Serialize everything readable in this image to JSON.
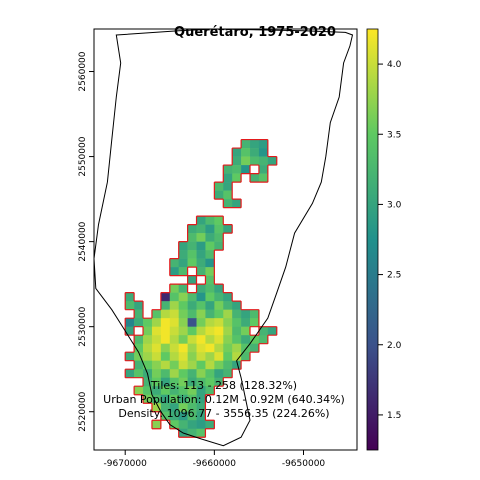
{
  "title": "Querétaro, 1975-2020",
  "x_ticks": [
    "-9670000",
    "-9660000",
    "-9650000"
  ],
  "y_ticks": [
    "2520000",
    "2530000",
    "2540000",
    "2550000",
    "2560000"
  ],
  "annotations": [
    "Tiles: 113 - 258 (128.32%)",
    "Urban Population: 0.12M - 0.92M (640.34%)",
    "Density: 1096.77 - 3556.35 (224.26%)"
  ],
  "legend": {
    "ticks": [
      "1.5",
      "2.0",
      "2.5",
      "3.0",
      "3.5",
      "4.0"
    ],
    "tick_values": [
      1.5,
      2.0,
      2.5,
      3.0,
      3.5,
      4.0
    ],
    "min": 1.25,
    "max": 4.25
  },
  "colors": {
    "boundary": "#000000",
    "tile_outline": "#e31a1c",
    "viridis": [
      "#440154",
      "#3b528b",
      "#21918c",
      "#5ec962",
      "#fde725"
    ]
  },
  "chart_data": {
    "type": "heatmap",
    "title": "Querétaro, 1975-2020",
    "x_range": [
      -9673500,
      -9644000
    ],
    "y_range": [
      2515500,
      2565000
    ],
    "cell_size_m": 1000,
    "color_range": [
      1.25,
      4.25
    ],
    "region_outline": [
      [
        -9671000,
        2564300
      ],
      [
        -9664000,
        2564800
      ],
      [
        -9660000,
        2565000
      ],
      [
        -9650000,
        2564800
      ],
      [
        -9645300,
        2564600
      ],
      [
        -9644500,
        2564300
      ],
      [
        -9644800,
        2563000
      ],
      [
        -9645500,
        2561000
      ],
      [
        -9646000,
        2557000
      ],
      [
        -9647000,
        2554000
      ],
      [
        -9647500,
        2550000
      ],
      [
        -9648000,
        2547000
      ],
      [
        -9649000,
        2544500
      ],
      [
        -9651000,
        2541000
      ],
      [
        -9652000,
        2537000
      ],
      [
        -9653000,
        2534000
      ],
      [
        -9654000,
        2531000
      ],
      [
        -9656000,
        2528000
      ],
      [
        -9657500,
        2526000
      ],
      [
        -9657000,
        2524000
      ],
      [
        -9656500,
        2521500
      ],
      [
        -9656000,
        2519000
      ],
      [
        -9657000,
        2517000
      ],
      [
        -9659000,
        2516000
      ],
      [
        -9661500,
        2516800
      ],
      [
        -9663500,
        2517500
      ],
      [
        -9665000,
        2518500
      ],
      [
        -9666000,
        2520000
      ],
      [
        -9667000,
        2522000
      ],
      [
        -9667500,
        2524500
      ],
      [
        -9668500,
        2527000
      ],
      [
        -9670000,
        2529500
      ],
      [
        -9671500,
        2532000
      ],
      [
        -9673300,
        2534500
      ],
      [
        -9673500,
        2538000
      ],
      [
        -9673000,
        2542000
      ],
      [
        -9672000,
        2547000
      ],
      [
        -9671500,
        2552000
      ],
      [
        -9671000,
        2557000
      ],
      [
        -9670500,
        2561000
      ],
      [
        -9671000,
        2564300
      ]
    ],
    "cells": [
      [
        -9657000,
        2551000,
        3.2
      ],
      [
        -9656000,
        2551000,
        3.0
      ],
      [
        -9655000,
        2551000,
        2.9
      ],
      [
        -9658000,
        2550000,
        3.0
      ],
      [
        -9657000,
        2550000,
        3.4
      ],
      [
        -9656000,
        2550000,
        3.1
      ],
      [
        -9655000,
        2550000,
        2.8
      ],
      [
        -9658000,
        2549000,
        3.1
      ],
      [
        -9657000,
        2549000,
        3.6
      ],
      [
        -9656000,
        2549000,
        3.3
      ],
      [
        -9655000,
        2549000,
        3.2
      ],
      [
        -9654000,
        2549000,
        3.0
      ],
      [
        -9659000,
        2548000,
        3.2
      ],
      [
        -9658000,
        2548000,
        3.3
      ],
      [
        -9657000,
        2548000,
        2.8
      ],
      [
        -9655000,
        2548000,
        3.1
      ],
      [
        -9659000,
        2547000,
        3.0
      ],
      [
        -9658000,
        2547000,
        3.5
      ],
      [
        -9656000,
        2547000,
        3.2
      ],
      [
        -9655000,
        2547000,
        3.4
      ],
      [
        -9660000,
        2546000,
        3.3
      ],
      [
        -9659000,
        2546000,
        3.0
      ],
      [
        -9660000,
        2545000,
        3.1
      ],
      [
        -9659000,
        2545000,
        3.4
      ],
      [
        -9659000,
        2544000,
        3.2
      ],
      [
        -9658000,
        2544000,
        3.0
      ],
      [
        -9662000,
        2542000,
        3.0
      ],
      [
        -9661000,
        2542000,
        3.3
      ],
      [
        -9660000,
        2542000,
        3.5
      ],
      [
        -9663000,
        2541000,
        3.1
      ],
      [
        -9662000,
        2541000,
        3.2
      ],
      [
        -9661000,
        2541000,
        2.9
      ],
      [
        -9660000,
        2541000,
        3.4
      ],
      [
        -9659000,
        2541000,
        3.0
      ],
      [
        -9663000,
        2540000,
        3.3
      ],
      [
        -9662000,
        2540000,
        3.6
      ],
      [
        -9661000,
        2540000,
        3.1
      ],
      [
        -9660000,
        2540000,
        3.3
      ],
      [
        -9664000,
        2539000,
        3.0
      ],
      [
        -9663000,
        2539000,
        3.2
      ],
      [
        -9662000,
        2539000,
        2.9
      ],
      [
        -9661000,
        2539000,
        3.5
      ],
      [
        -9660000,
        2539000,
        3.2
      ],
      [
        -9664000,
        2538000,
        3.1
      ],
      [
        -9663000,
        2538000,
        3.4
      ],
      [
        -9662000,
        2538000,
        3.0
      ],
      [
        -9661000,
        2538000,
        3.3
      ],
      [
        -9665000,
        2537000,
        3.2
      ],
      [
        -9664000,
        2537000,
        3.0
      ],
      [
        -9663000,
        2537000,
        3.5
      ],
      [
        -9662000,
        2537000,
        3.1
      ],
      [
        -9661000,
        2537000,
        2.8
      ],
      [
        -9665000,
        2536000,
        2.9
      ],
      [
        -9664000,
        2536000,
        3.3
      ],
      [
        -9662000,
        2536000,
        3.2
      ],
      [
        -9661000,
        2536000,
        3.6
      ],
      [
        -9663000,
        2535000,
        3.0
      ],
      [
        -9661000,
        2535000,
        3.4
      ],
      [
        -9665000,
        2534000,
        3.6
      ],
      [
        -9664000,
        2534000,
        3.2
      ],
      [
        -9662000,
        2534000,
        3.1
      ],
      [
        -9661000,
        2534000,
        3.3
      ],
      [
        -9660000,
        2534000,
        3.0
      ],
      [
        -9670000,
        2533000,
        3.1
      ],
      [
        -9666000,
        2533000,
        1.6
      ],
      [
        -9665000,
        2533000,
        3.4
      ],
      [
        -9664000,
        2533000,
        3.7
      ],
      [
        -9663000,
        2533000,
        3.3
      ],
      [
        -9662000,
        2533000,
        2.8
      ],
      [
        -9661000,
        2533000,
        3.5
      ],
      [
        -9660000,
        2533000,
        3.2
      ],
      [
        -9659000,
        2533000,
        3.0
      ],
      [
        -9670000,
        2532000,
        3.3
      ],
      [
        -9669000,
        2532000,
        3.0
      ],
      [
        -9666000,
        2532000,
        3.2
      ],
      [
        -9665000,
        2532000,
        3.8
      ],
      [
        -9664000,
        2532000,
        3.5
      ],
      [
        -9663000,
        2532000,
        3.1
      ],
      [
        -9662000,
        2532000,
        3.4
      ],
      [
        -9661000,
        2532000,
        3.0
      ],
      [
        -9660000,
        2532000,
        3.6
      ],
      [
        -9659000,
        2532000,
        3.2
      ],
      [
        -9658000,
        2532000,
        3.0
      ],
      [
        -9669000,
        2531000,
        3.2
      ],
      [
        -9667000,
        2531000,
        3.4
      ],
      [
        -9666000,
        2531000,
        3.9
      ],
      [
        -9665000,
        2531000,
        4.0
      ],
      [
        -9664000,
        2531000,
        3.6
      ],
      [
        -9663000,
        2531000,
        3.3
      ],
      [
        -9662000,
        2531000,
        3.7
      ],
      [
        -9661000,
        2531000,
        3.2
      ],
      [
        -9660000,
        2531000,
        3.5
      ],
      [
        -9659000,
        2531000,
        3.8
      ],
      [
        -9658000,
        2531000,
        3.2
      ],
      [
        -9657000,
        2531000,
        3.0
      ],
      [
        -9656000,
        2531000,
        3.3
      ],
      [
        -9670000,
        2530000,
        2.6
      ],
      [
        -9669000,
        2530000,
        3.1
      ],
      [
        -9668000,
        2530000,
        3.5
      ],
      [
        -9667000,
        2530000,
        3.8
      ],
      [
        -9666000,
        2530000,
        4.2
      ],
      [
        -9665000,
        2530000,
        4.1
      ],
      [
        -9664000,
        2530000,
        3.7
      ],
      [
        -9663000,
        2530000,
        2.0
      ],
      [
        -9662000,
        2530000,
        3.6
      ],
      [
        -9661000,
        2530000,
        3.9
      ],
      [
        -9660000,
        2530000,
        4.0
      ],
      [
        -9659000,
        2530000,
        3.7
      ],
      [
        -9658000,
        2530000,
        3.4
      ],
      [
        -9657000,
        2530000,
        3.1
      ],
      [
        -9656000,
        2530000,
        3.5
      ],
      [
        -9670000,
        2529000,
        3.0
      ],
      [
        -9668000,
        2529000,
        3.6
      ],
      [
        -9667000,
        2529000,
        4.1
      ],
      [
        -9666000,
        2529000,
        4.2
      ],
      [
        -9665000,
        2529000,
        4.0
      ],
      [
        -9664000,
        2529000,
        3.8
      ],
      [
        -9663000,
        2529000,
        3.5
      ],
      [
        -9662000,
        2529000,
        3.9
      ],
      [
        -9661000,
        2529000,
        4.1
      ],
      [
        -9660000,
        2529000,
        4.2
      ],
      [
        -9659000,
        2529000,
        3.8
      ],
      [
        -9658000,
        2529000,
        3.3
      ],
      [
        -9657000,
        2529000,
        3.6
      ],
      [
        -9655000,
        2529000,
        3.2
      ],
      [
        -9654000,
        2529000,
        3.0
      ],
      [
        -9669000,
        2528000,
        3.3
      ],
      [
        -9668000,
        2528000,
        3.8
      ],
      [
        -9667000,
        2528000,
        4.0
      ],
      [
        -9666000,
        2528000,
        4.2
      ],
      [
        -9665000,
        2528000,
        3.9
      ],
      [
        -9664000,
        2528000,
        3.6
      ],
      [
        -9663000,
        2528000,
        4.0
      ],
      [
        -9662000,
        2528000,
        4.2
      ],
      [
        -9661000,
        2528000,
        3.9
      ],
      [
        -9660000,
        2528000,
        4.1
      ],
      [
        -9659000,
        2528000,
        3.7
      ],
      [
        -9658000,
        2528000,
        3.4
      ],
      [
        -9657000,
        2528000,
        3.1
      ],
      [
        -9656000,
        2528000,
        3.5
      ],
      [
        -9655000,
        2528000,
        3.3
      ],
      [
        -9669000,
        2527000,
        3.5
      ],
      [
        -9668000,
        2527000,
        3.9
      ],
      [
        -9667000,
        2527000,
        4.1
      ],
      [
        -9666000,
        2527000,
        3.7
      ],
      [
        -9665000,
        2527000,
        4.0
      ],
      [
        -9664000,
        2527000,
        4.2
      ],
      [
        -9663000,
        2527000,
        3.8
      ],
      [
        -9662000,
        2527000,
        4.1
      ],
      [
        -9661000,
        2527000,
        4.2
      ],
      [
        -9660000,
        2527000,
        3.9
      ],
      [
        -9659000,
        2527000,
        3.6
      ],
      [
        -9658000,
        2527000,
        3.8
      ],
      [
        -9657000,
        2527000,
        3.4
      ],
      [
        -9656000,
        2527000,
        3.2
      ],
      [
        -9670000,
        2526000,
        3.1
      ],
      [
        -9669000,
        2526000,
        3.6
      ],
      [
        -9668000,
        2526000,
        3.8
      ],
      [
        -9667000,
        2526000,
        4.0
      ],
      [
        -9666000,
        2526000,
        3.5
      ],
      [
        -9665000,
        2526000,
        3.9
      ],
      [
        -9664000,
        2526000,
        4.1
      ],
      [
        -9663000,
        2526000,
        3.7
      ],
      [
        -9662000,
        2526000,
        4.0
      ],
      [
        -9661000,
        2526000,
        3.8
      ],
      [
        -9660000,
        2526000,
        4.1
      ],
      [
        -9659000,
        2526000,
        3.5
      ],
      [
        -9658000,
        2526000,
        3.9
      ],
      [
        -9657000,
        2526000,
        3.3
      ],
      [
        -9669000,
        2525000,
        3.2
      ],
      [
        -9668000,
        2525000,
        3.5
      ],
      [
        -9667000,
        2525000,
        3.7
      ],
      [
        -9666000,
        2525000,
        3.9
      ],
      [
        -9665000,
        2525000,
        3.6
      ],
      [
        -9664000,
        2525000,
        4.0
      ],
      [
        -9663000,
        2525000,
        3.8
      ],
      [
        -9662000,
        2525000,
        3.5
      ],
      [
        -9661000,
        2525000,
        3.9
      ],
      [
        -9660000,
        2525000,
        3.6
      ],
      [
        -9659000,
        2525000,
        3.3
      ],
      [
        -9658000,
        2525000,
        3.0
      ],
      [
        -9670000,
        2524000,
        3.0
      ],
      [
        -9669000,
        2524000,
        3.4
      ],
      [
        -9668000,
        2524000,
        3.1
      ],
      [
        -9667000,
        2524000,
        3.6
      ],
      [
        -9666000,
        2524000,
        3.3
      ],
      [
        -9665000,
        2524000,
        3.8
      ],
      [
        -9664000,
        2524000,
        3.5
      ],
      [
        -9663000,
        2524000,
        3.2
      ],
      [
        -9662000,
        2524000,
        3.7
      ],
      [
        -9661000,
        2524000,
        3.4
      ],
      [
        -9660000,
        2524000,
        3.0
      ],
      [
        -9659000,
        2524000,
        3.2
      ],
      [
        -9668000,
        2523000,
        3.2
      ],
      [
        -9667000,
        2523000,
        3.5
      ],
      [
        -9666000,
        2523000,
        3.0
      ],
      [
        -9665000,
        2523000,
        3.4
      ],
      [
        -9664000,
        2523000,
        3.6
      ],
      [
        -9663000,
        2523000,
        3.1
      ],
      [
        -9662000,
        2523000,
        3.3
      ],
      [
        -9661000,
        2523000,
        3.5
      ],
      [
        -9660000,
        2523000,
        3.2
      ],
      [
        -9669000,
        2522000,
        3.7
      ],
      [
        -9668000,
        2522000,
        3.4
      ],
      [
        -9667000,
        2522000,
        3.1
      ],
      [
        -9666000,
        2522000,
        3.5
      ],
      [
        -9665000,
        2522000,
        3.2
      ],
      [
        -9664000,
        2522000,
        3.4
      ],
      [
        -9663000,
        2522000,
        3.6
      ],
      [
        -9662000,
        2522000,
        3.0
      ],
      [
        -9661000,
        2522000,
        3.3
      ],
      [
        -9668000,
        2521000,
        3.6
      ],
      [
        -9667000,
        2521000,
        3.3
      ],
      [
        -9666000,
        2521000,
        3.0
      ],
      [
        -9665000,
        2521000,
        3.5
      ],
      [
        -9664000,
        2521000,
        3.1
      ],
      [
        -9663000,
        2521000,
        3.4
      ],
      [
        -9662000,
        2521000,
        3.0
      ],
      [
        -9667000,
        2520000,
        3.8
      ],
      [
        -9666000,
        2520000,
        3.2
      ],
      [
        -9665000,
        2520000,
        3.0
      ],
      [
        -9664000,
        2520000,
        3.6
      ],
      [
        -9663000,
        2520000,
        3.3
      ],
      [
        -9662000,
        2520000,
        3.1
      ],
      [
        -9666000,
        2519000,
        3.4
      ],
      [
        -9665000,
        2519000,
        3.1
      ],
      [
        -9664000,
        2519000,
        2.9
      ],
      [
        -9663000,
        2519000,
        3.3
      ],
      [
        -9662000,
        2519000,
        3.0
      ],
      [
        -9667000,
        2518000,
        3.7
      ],
      [
        -9665000,
        2518000,
        3.5
      ],
      [
        -9664000,
        2518000,
        3.2
      ],
      [
        -9663000,
        2518000,
        3.0
      ],
      [
        -9662000,
        2518000,
        2.9
      ],
      [
        -9661000,
        2518000,
        3.1
      ],
      [
        -9664000,
        2517000,
        3.0
      ],
      [
        -9663000,
        2517000,
        3.2
      ],
      [
        -9662000,
        2517000,
        3.4
      ]
    ]
  }
}
